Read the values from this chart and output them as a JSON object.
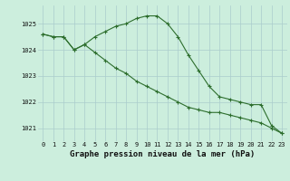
{
  "title": "Graphe pression niveau de la mer (hPa)",
  "background_color": "#cceedd",
  "grid_color": "#aacccc",
  "line_color": "#2d6e2d",
  "hours": [
    0,
    1,
    2,
    3,
    4,
    5,
    6,
    7,
    8,
    9,
    10,
    11,
    12,
    13,
    14,
    15,
    16,
    17,
    18,
    19,
    20,
    21,
    22,
    23
  ],
  "series1": [
    1024.6,
    1024.5,
    1024.5,
    1024.0,
    1024.2,
    1024.5,
    1024.7,
    1024.9,
    1025.0,
    1025.2,
    1025.3,
    1025.3,
    1025.0,
    1024.5,
    1023.8,
    1023.2,
    1022.6,
    1022.2,
    1022.1,
    1022.0,
    1021.9,
    1021.9,
    1021.1,
    1020.8
  ],
  "series2": [
    1024.6,
    1024.5,
    1024.5,
    1024.0,
    1024.2,
    1023.9,
    1023.6,
    1023.3,
    1023.1,
    1022.8,
    1022.6,
    1022.4,
    1022.2,
    1022.0,
    1021.8,
    1021.7,
    1021.6,
    1021.6,
    1021.5,
    1021.4,
    1021.3,
    1021.2,
    1021.0,
    1020.8
  ],
  "ylim": [
    1020.5,
    1025.7
  ],
  "yticks": [
    1021,
    1022,
    1023,
    1024,
    1025
  ],
  "title_fontsize": 6.5,
  "tick_fontsize": 5.0
}
